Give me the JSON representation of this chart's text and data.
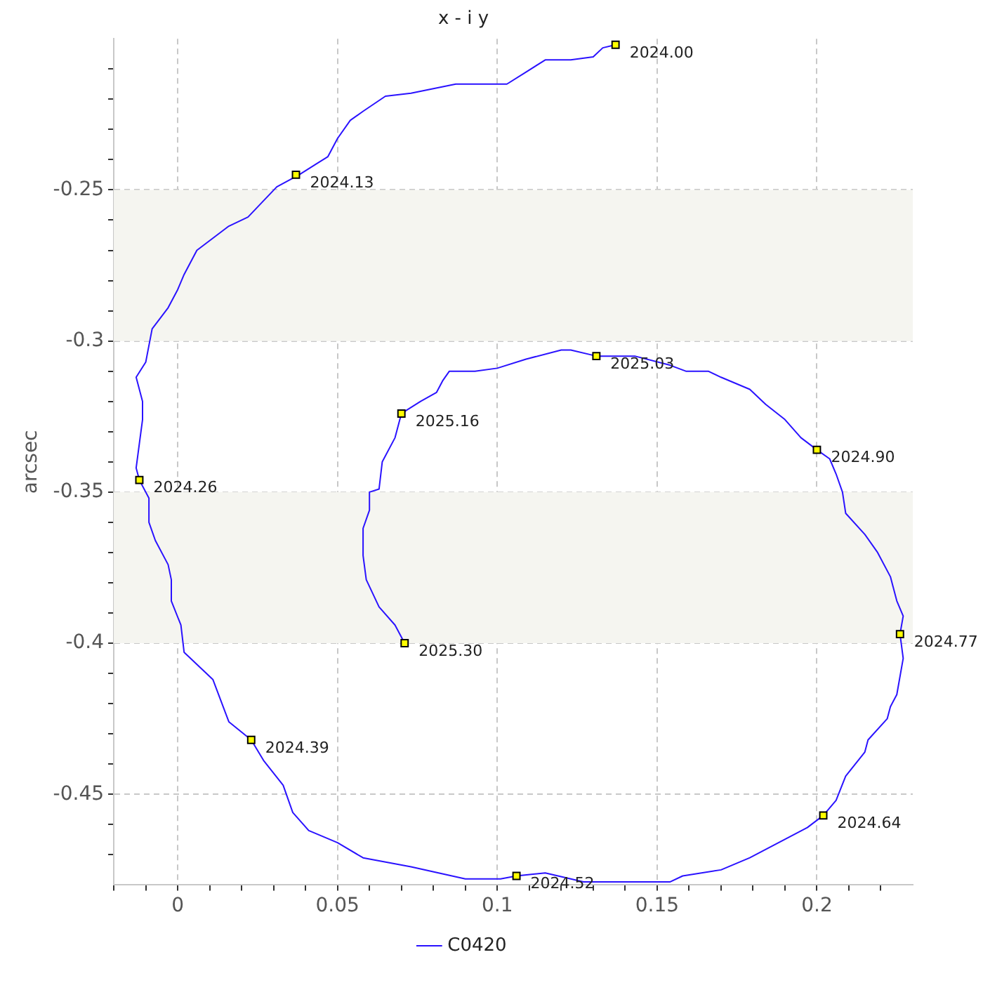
{
  "chart_data": {
    "type": "line",
    "title": "x - i y",
    "ylabel": "arcsec",
    "xlim": [
      -0.02,
      0.23
    ],
    "ylim": [
      -0.48,
      -0.2
    ],
    "xticks": [
      {
        "value": -0.02,
        "label": null
      },
      {
        "value": -0.01,
        "label": null
      },
      0,
      {
        "value": 0.01,
        "label": null
      },
      {
        "value": 0.02,
        "label": null
      },
      {
        "value": 0.03,
        "label": null
      },
      {
        "value": 0.04,
        "label": null
      },
      0.05,
      {
        "value": 0.06,
        "label": null
      },
      {
        "value": 0.07,
        "label": null
      },
      {
        "value": 0.08,
        "label": null
      },
      {
        "value": 0.09,
        "label": null
      },
      0.1,
      {
        "value": 0.11,
        "label": null
      },
      {
        "value": 0.12,
        "label": null
      },
      {
        "value": 0.13,
        "label": null
      },
      {
        "value": 0.14,
        "label": null
      },
      0.15,
      {
        "value": 0.16,
        "label": null
      },
      {
        "value": 0.17,
        "label": null
      },
      {
        "value": 0.18,
        "label": null
      },
      {
        "value": 0.19,
        "label": null
      },
      0.2,
      {
        "value": 0.21,
        "label": null
      },
      {
        "value": 0.22,
        "label": null
      }
    ],
    "yticks": [
      {
        "value": -0.47,
        "label": null
      },
      {
        "value": -0.46,
        "label": null
      },
      -0.45,
      {
        "value": -0.44,
        "label": null
      },
      {
        "value": -0.43,
        "label": null
      },
      {
        "value": -0.42,
        "label": null
      },
      {
        "value": -0.41,
        "label": null
      },
      -0.4,
      {
        "value": -0.39,
        "label": null
      },
      {
        "value": -0.38,
        "label": null
      },
      {
        "value": -0.37,
        "label": null
      },
      {
        "value": -0.36,
        "label": null
      },
      -0.35,
      {
        "value": -0.34,
        "label": null
      },
      {
        "value": -0.33,
        "label": null
      },
      {
        "value": -0.32,
        "label": null
      },
      {
        "value": -0.31,
        "label": null
      },
      -0.3,
      {
        "value": -0.29,
        "label": null
      },
      {
        "value": -0.28,
        "label": null
      },
      {
        "value": -0.27,
        "label": null
      },
      {
        "value": -0.26,
        "label": null
      },
      -0.25,
      {
        "value": -0.24,
        "label": null
      },
      {
        "value": -0.23,
        "label": null
      },
      {
        "value": -0.22,
        "label": null
      },
      {
        "value": -0.21,
        "label": null
      }
    ],
    "grid": true,
    "legend": "bottom",
    "bands": [
      {
        "axis": "y",
        "from": -0.3,
        "to": -0.25,
        "color": "#f5f5f0"
      },
      {
        "axis": "y",
        "from": -0.4,
        "to": -0.35,
        "color": "#f5f5f0"
      }
    ],
    "series": [
      {
        "name": "C0420",
        "type": "line",
        "color": "#2a12ff",
        "marker": "none",
        "line_style": "solid",
        "x": [
          0.137,
          0.133,
          0.13,
          0.123,
          0.115,
          0.109,
          0.103,
          0.087,
          0.073,
          0.065,
          0.058,
          0.054,
          0.05,
          0.047,
          0.044,
          0.038,
          0.031,
          0.022,
          0.016,
          0.006,
          0.002,
          0.0,
          -0.003,
          -0.008,
          -0.01,
          -0.013,
          -0.011,
          -0.011,
          -0.012,
          -0.013,
          -0.012,
          -0.009,
          -0.009,
          -0.007,
          -0.003,
          -0.002,
          -0.002,
          0.001,
          0.002,
          0.011,
          0.016,
          0.023,
          0.027,
          0.033,
          0.036,
          0.041,
          0.05,
          0.058,
          0.073,
          0.09,
          0.101,
          0.106,
          0.115,
          0.127,
          0.154,
          0.158,
          0.17,
          0.179,
          0.197,
          0.202,
          0.206,
          0.209,
          0.215,
          0.216,
          0.222,
          0.223,
          0.225,
          0.227,
          0.226,
          0.227,
          0.225,
          0.223,
          0.219,
          0.215,
          0.209,
          0.208,
          0.206,
          0.204,
          0.2,
          0.195,
          0.19,
          0.184,
          0.179,
          0.17,
          0.166,
          0.159,
          0.154,
          0.143,
          0.131,
          0.123,
          0.12,
          0.109,
          0.1,
          0.093,
          0.085,
          0.083,
          0.081,
          0.076,
          0.07,
          0.068,
          0.064,
          0.063,
          0.06,
          0.06,
          0.058,
          0.058,
          0.059,
          0.063,
          0.068,
          0.071
        ],
        "values": [
          -0.202,
          -0.203,
          -0.206,
          -0.207,
          -0.207,
          -0.211,
          -0.215,
          -0.215,
          -0.218,
          -0.219,
          -0.224,
          -0.227,
          -0.233,
          -0.239,
          -0.241,
          -0.245,
          -0.249,
          -0.259,
          -0.262,
          -0.27,
          -0.278,
          -0.283,
          -0.289,
          -0.296,
          -0.307,
          -0.312,
          -0.32,
          -0.326,
          -0.334,
          -0.342,
          -0.346,
          -0.352,
          -0.36,
          -0.366,
          -0.374,
          -0.379,
          -0.386,
          -0.394,
          -0.403,
          -0.412,
          -0.426,
          -0.432,
          -0.439,
          -0.447,
          -0.456,
          -0.462,
          -0.466,
          -0.471,
          -0.474,
          -0.478,
          -0.478,
          -0.477,
          -0.476,
          -0.479,
          -0.479,
          -0.477,
          -0.475,
          -0.471,
          -0.461,
          -0.457,
          -0.452,
          -0.444,
          -0.436,
          -0.432,
          -0.425,
          -0.421,
          -0.417,
          -0.405,
          -0.397,
          -0.391,
          -0.386,
          -0.378,
          -0.37,
          -0.364,
          -0.357,
          -0.35,
          -0.344,
          -0.339,
          -0.336,
          -0.332,
          -0.326,
          -0.321,
          -0.316,
          -0.312,
          -0.31,
          -0.31,
          -0.308,
          -0.305,
          -0.305,
          -0.303,
          -0.303,
          -0.306,
          -0.309,
          -0.31,
          -0.31,
          -0.313,
          -0.317,
          -0.32,
          -0.324,
          -0.332,
          -0.34,
          -0.349,
          -0.35,
          -0.356,
          -0.362,
          -0.371,
          -0.379,
          -0.388,
          -0.394,
          -0.4
        ]
      },
      {
        "type": "scatter",
        "color": "#ffff00",
        "marker": "square",
        "x": [
          0.137,
          0.037,
          -0.012,
          0.023,
          0.106,
          0.202,
          0.226,
          0.2,
          0.131,
          0.07,
          0.071
        ],
        "values": [
          -0.202,
          -0.245,
          -0.346,
          -0.432,
          -0.477,
          -0.457,
          -0.397,
          -0.336,
          -0.305,
          -0.324,
          -0.4
        ]
      }
    ],
    "annotations": [
      {
        "text": "2024.00",
        "x": 0.137,
        "y": -0.202
      },
      {
        "text": "2024.13",
        "x": 0.037,
        "y": -0.245
      },
      {
        "text": "2024.26",
        "x": -0.012,
        "y": -0.346
      },
      {
        "text": "2024.39",
        "x": 0.023,
        "y": -0.432
      },
      {
        "text": "2024.52",
        "x": 0.106,
        "y": -0.477
      },
      {
        "text": "2024.64",
        "x": 0.202,
        "y": -0.457
      },
      {
        "text": "2024.77",
        "x": 0.226,
        "y": -0.397
      },
      {
        "text": "2024.90",
        "x": 0.2,
        "y": -0.336
      },
      {
        "text": "2025.03",
        "x": 0.131,
        "y": -0.305
      },
      {
        "text": "2025.16",
        "x": 0.07,
        "y": -0.324
      },
      {
        "text": "2025.30",
        "x": 0.071,
        "y": -0.4
      }
    ]
  }
}
